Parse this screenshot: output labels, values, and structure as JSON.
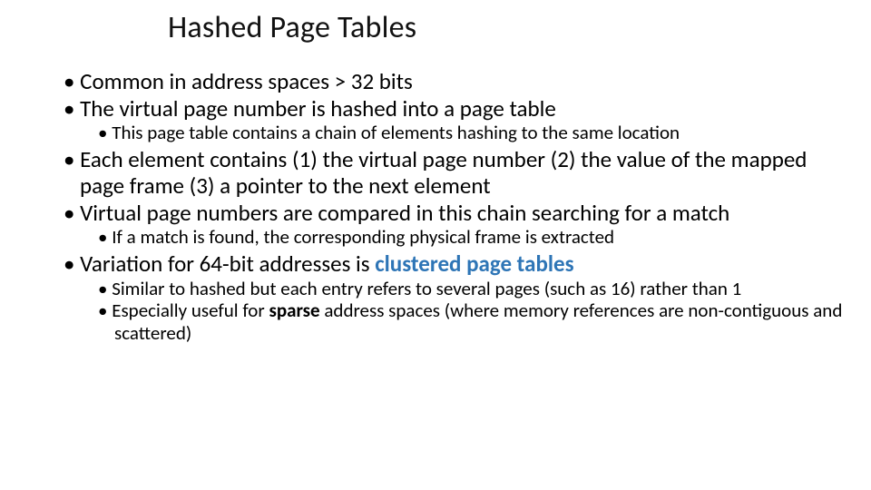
{
  "slide": {
    "title": "Hashed Page Tables",
    "title_fontsize": 34,
    "title_color": "#111111",
    "main_fontsize": 25,
    "sub_fontsize": 21,
    "text_color": "#000000",
    "accent_color": "#2e75b6",
    "background_color": "#ffffff",
    "bullets": {
      "b1": "Common in address spaces > 32 bits",
      "b2": "The virtual page number is hashed into a page table",
      "b2a": "This page table contains a chain of elements hashing to the same location",
      "b3": "Each element contains (1) the virtual page number (2) the value of the mapped page frame (3) a pointer to the next element",
      "b4": "Virtual page numbers are compared in this chain searching for a match",
      "b4a": "If a match is found, the corresponding physical frame is extracted",
      "b5_prefix": "Variation for 64-bit addresses is ",
      "b5_bold": "clustered page tables",
      "b5a": "Similar to hashed but each entry refers to several pages (such as 16) rather than 1",
      "b5b_prefix": "Especially useful for ",
      "b5b_bold": "sparse",
      "b5b_suffix": " address spaces (where memory references are non-contiguous and scattered)"
    }
  }
}
